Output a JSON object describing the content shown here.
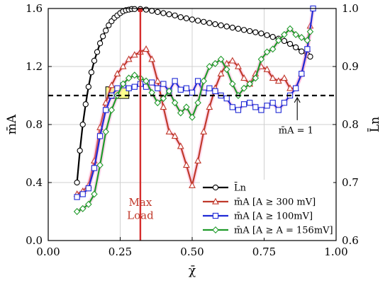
{
  "chart_data": {
    "type": "line",
    "xlabel": "χ̄",
    "ylabel_left": "m̄A",
    "ylabel_right": "L̄n",
    "xlim": [
      0.0,
      1.0
    ],
    "ylim_left": [
      0.0,
      1.6
    ],
    "ylim_right": [
      0.6,
      1.0
    ],
    "xticks": [
      "0.00",
      "0.25",
      "0.50",
      "0.75",
      "1.00"
    ],
    "yticks_left": [
      "0.0",
      "0.4",
      "0.8",
      "1.2",
      "1.6"
    ],
    "yticks_right": [
      "0.6",
      "0.7",
      "0.8",
      "0.9",
      "1.0"
    ],
    "grid": true,
    "legend_position": "bottom-right",
    "series": [
      {
        "name": "L̄n",
        "axis": "right",
        "color": "#000000",
        "marker": "circle",
        "x": [
          0.1,
          0.11,
          0.12,
          0.13,
          0.14,
          0.15,
          0.16,
          0.17,
          0.18,
          0.19,
          0.2,
          0.21,
          0.22,
          0.23,
          0.24,
          0.25,
          0.26,
          0.27,
          0.28,
          0.29,
          0.3,
          0.32,
          0.34,
          0.36,
          0.38,
          0.4,
          0.42,
          0.44,
          0.46,
          0.48,
          0.5,
          0.52,
          0.54,
          0.56,
          0.58,
          0.6,
          0.62,
          0.64,
          0.66,
          0.68,
          0.7,
          0.72,
          0.74,
          0.76,
          0.78,
          0.8,
          0.82,
          0.84,
          0.86,
          0.88,
          0.9,
          0.91
        ],
        "y": [
          0.7,
          0.755,
          0.8,
          0.835,
          0.865,
          0.89,
          0.91,
          0.925,
          0.94,
          0.952,
          0.962,
          0.971,
          0.978,
          0.984,
          0.988,
          0.992,
          0.995,
          0.997,
          0.998,
          0.999,
          0.999,
          0.999,
          0.998,
          0.996,
          0.994,
          0.992,
          0.99,
          0.988,
          0.985,
          0.983,
          0.981,
          0.979,
          0.977,
          0.975,
          0.973,
          0.971,
          0.969,
          0.967,
          0.965,
          0.963,
          0.961,
          0.959,
          0.957,
          0.954,
          0.951,
          0.948,
          0.944,
          0.939,
          0.933,
          0.926,
          0.92,
          0.917
        ]
      },
      {
        "name": "m̄A [A ≥ 300 mV]",
        "axis": "left",
        "color": "#c0392b",
        "marker": "triangle",
        "x": [
          0.1,
          0.12,
          0.14,
          0.16,
          0.18,
          0.2,
          0.22,
          0.24,
          0.26,
          0.28,
          0.3,
          0.32,
          0.34,
          0.36,
          0.38,
          0.4,
          0.42,
          0.44,
          0.46,
          0.48,
          0.5,
          0.52,
          0.54,
          0.56,
          0.58,
          0.6,
          0.62,
          0.64,
          0.66,
          0.68,
          0.7,
          0.72,
          0.74,
          0.76,
          0.78,
          0.8,
          0.82,
          0.84,
          0.86,
          0.88,
          0.9,
          0.91
        ],
        "y": [
          0.32,
          0.34,
          0.38,
          0.55,
          0.78,
          0.95,
          1.07,
          1.15,
          1.2,
          1.25,
          1.28,
          1.3,
          1.32,
          1.25,
          1.1,
          0.92,
          0.75,
          0.72,
          0.65,
          0.52,
          0.38,
          0.55,
          0.75,
          0.92,
          1.05,
          1.15,
          1.22,
          1.24,
          1.2,
          1.12,
          1.08,
          1.15,
          1.2,
          1.18,
          1.12,
          1.1,
          1.12,
          1.05,
          1.05,
          1.15,
          1.32,
          1.48
        ]
      },
      {
        "name": "m̄A [A ≥ 100mV]",
        "axis": "left",
        "color": "#1f2ad6",
        "marker": "square",
        "x": [
          0.1,
          0.12,
          0.14,
          0.16,
          0.18,
          0.2,
          0.22,
          0.24,
          0.26,
          0.28,
          0.3,
          0.32,
          0.34,
          0.36,
          0.38,
          0.4,
          0.42,
          0.44,
          0.46,
          0.48,
          0.5,
          0.52,
          0.54,
          0.56,
          0.58,
          0.6,
          0.62,
          0.64,
          0.66,
          0.68,
          0.7,
          0.72,
          0.74,
          0.76,
          0.78,
          0.8,
          0.82,
          0.84,
          0.86,
          0.88,
          0.9,
          0.92
        ],
        "y": [
          0.3,
          0.32,
          0.36,
          0.5,
          0.72,
          0.9,
          1.0,
          1.05,
          1.07,
          1.05,
          1.06,
          1.08,
          1.06,
          1.09,
          1.05,
          1.08,
          1.03,
          1.1,
          1.04,
          1.05,
          1.02,
          1.1,
          1.02,
          1.05,
          1.03,
          1.0,
          0.98,
          0.92,
          0.9,
          0.94,
          0.95,
          0.92,
          0.9,
          0.93,
          0.95,
          0.9,
          0.95,
          1.0,
          1.05,
          1.15,
          1.32,
          1.6
        ]
      },
      {
        "name": "m̄A [A ≥ A = 156mV]",
        "axis": "left",
        "color": "#1f9a2a",
        "marker": "diamond",
        "x": [
          0.1,
          0.12,
          0.14,
          0.16,
          0.18,
          0.2,
          0.22,
          0.24,
          0.26,
          0.28,
          0.3,
          0.32,
          0.34,
          0.36,
          0.38,
          0.4,
          0.42,
          0.44,
          0.46,
          0.48,
          0.5,
          0.52,
          0.54,
          0.56,
          0.58,
          0.6,
          0.62,
          0.64,
          0.66,
          0.68,
          0.7,
          0.72,
          0.74,
          0.76,
          0.78,
          0.8,
          0.82,
          0.84,
          0.86,
          0.88,
          0.9,
          0.91
        ],
        "y": [
          0.2,
          0.22,
          0.25,
          0.32,
          0.52,
          0.75,
          0.9,
          1.0,
          1.08,
          1.12,
          1.14,
          1.12,
          1.1,
          1.02,
          0.95,
          0.98,
          1.03,
          0.95,
          0.88,
          0.92,
          0.85,
          0.95,
          1.1,
          1.2,
          1.22,
          1.25,
          1.18,
          1.08,
          1.0,
          1.05,
          1.08,
          1.12,
          1.25,
          1.3,
          1.32,
          1.38,
          1.42,
          1.46,
          1.42,
          1.4,
          1.38,
          1.44
        ]
      }
    ],
    "reference_line": {
      "y": 1.0,
      "label": "m̄A = 1"
    },
    "vline": {
      "x": 0.32,
      "label_top": "Max",
      "label_bottom": "Load",
      "color": "#d62d2d"
    },
    "highlight_box": {
      "x0": 0.2,
      "x1": 0.28,
      "y0": 0.98,
      "y1": 1.06,
      "color": "#ffff66"
    }
  }
}
